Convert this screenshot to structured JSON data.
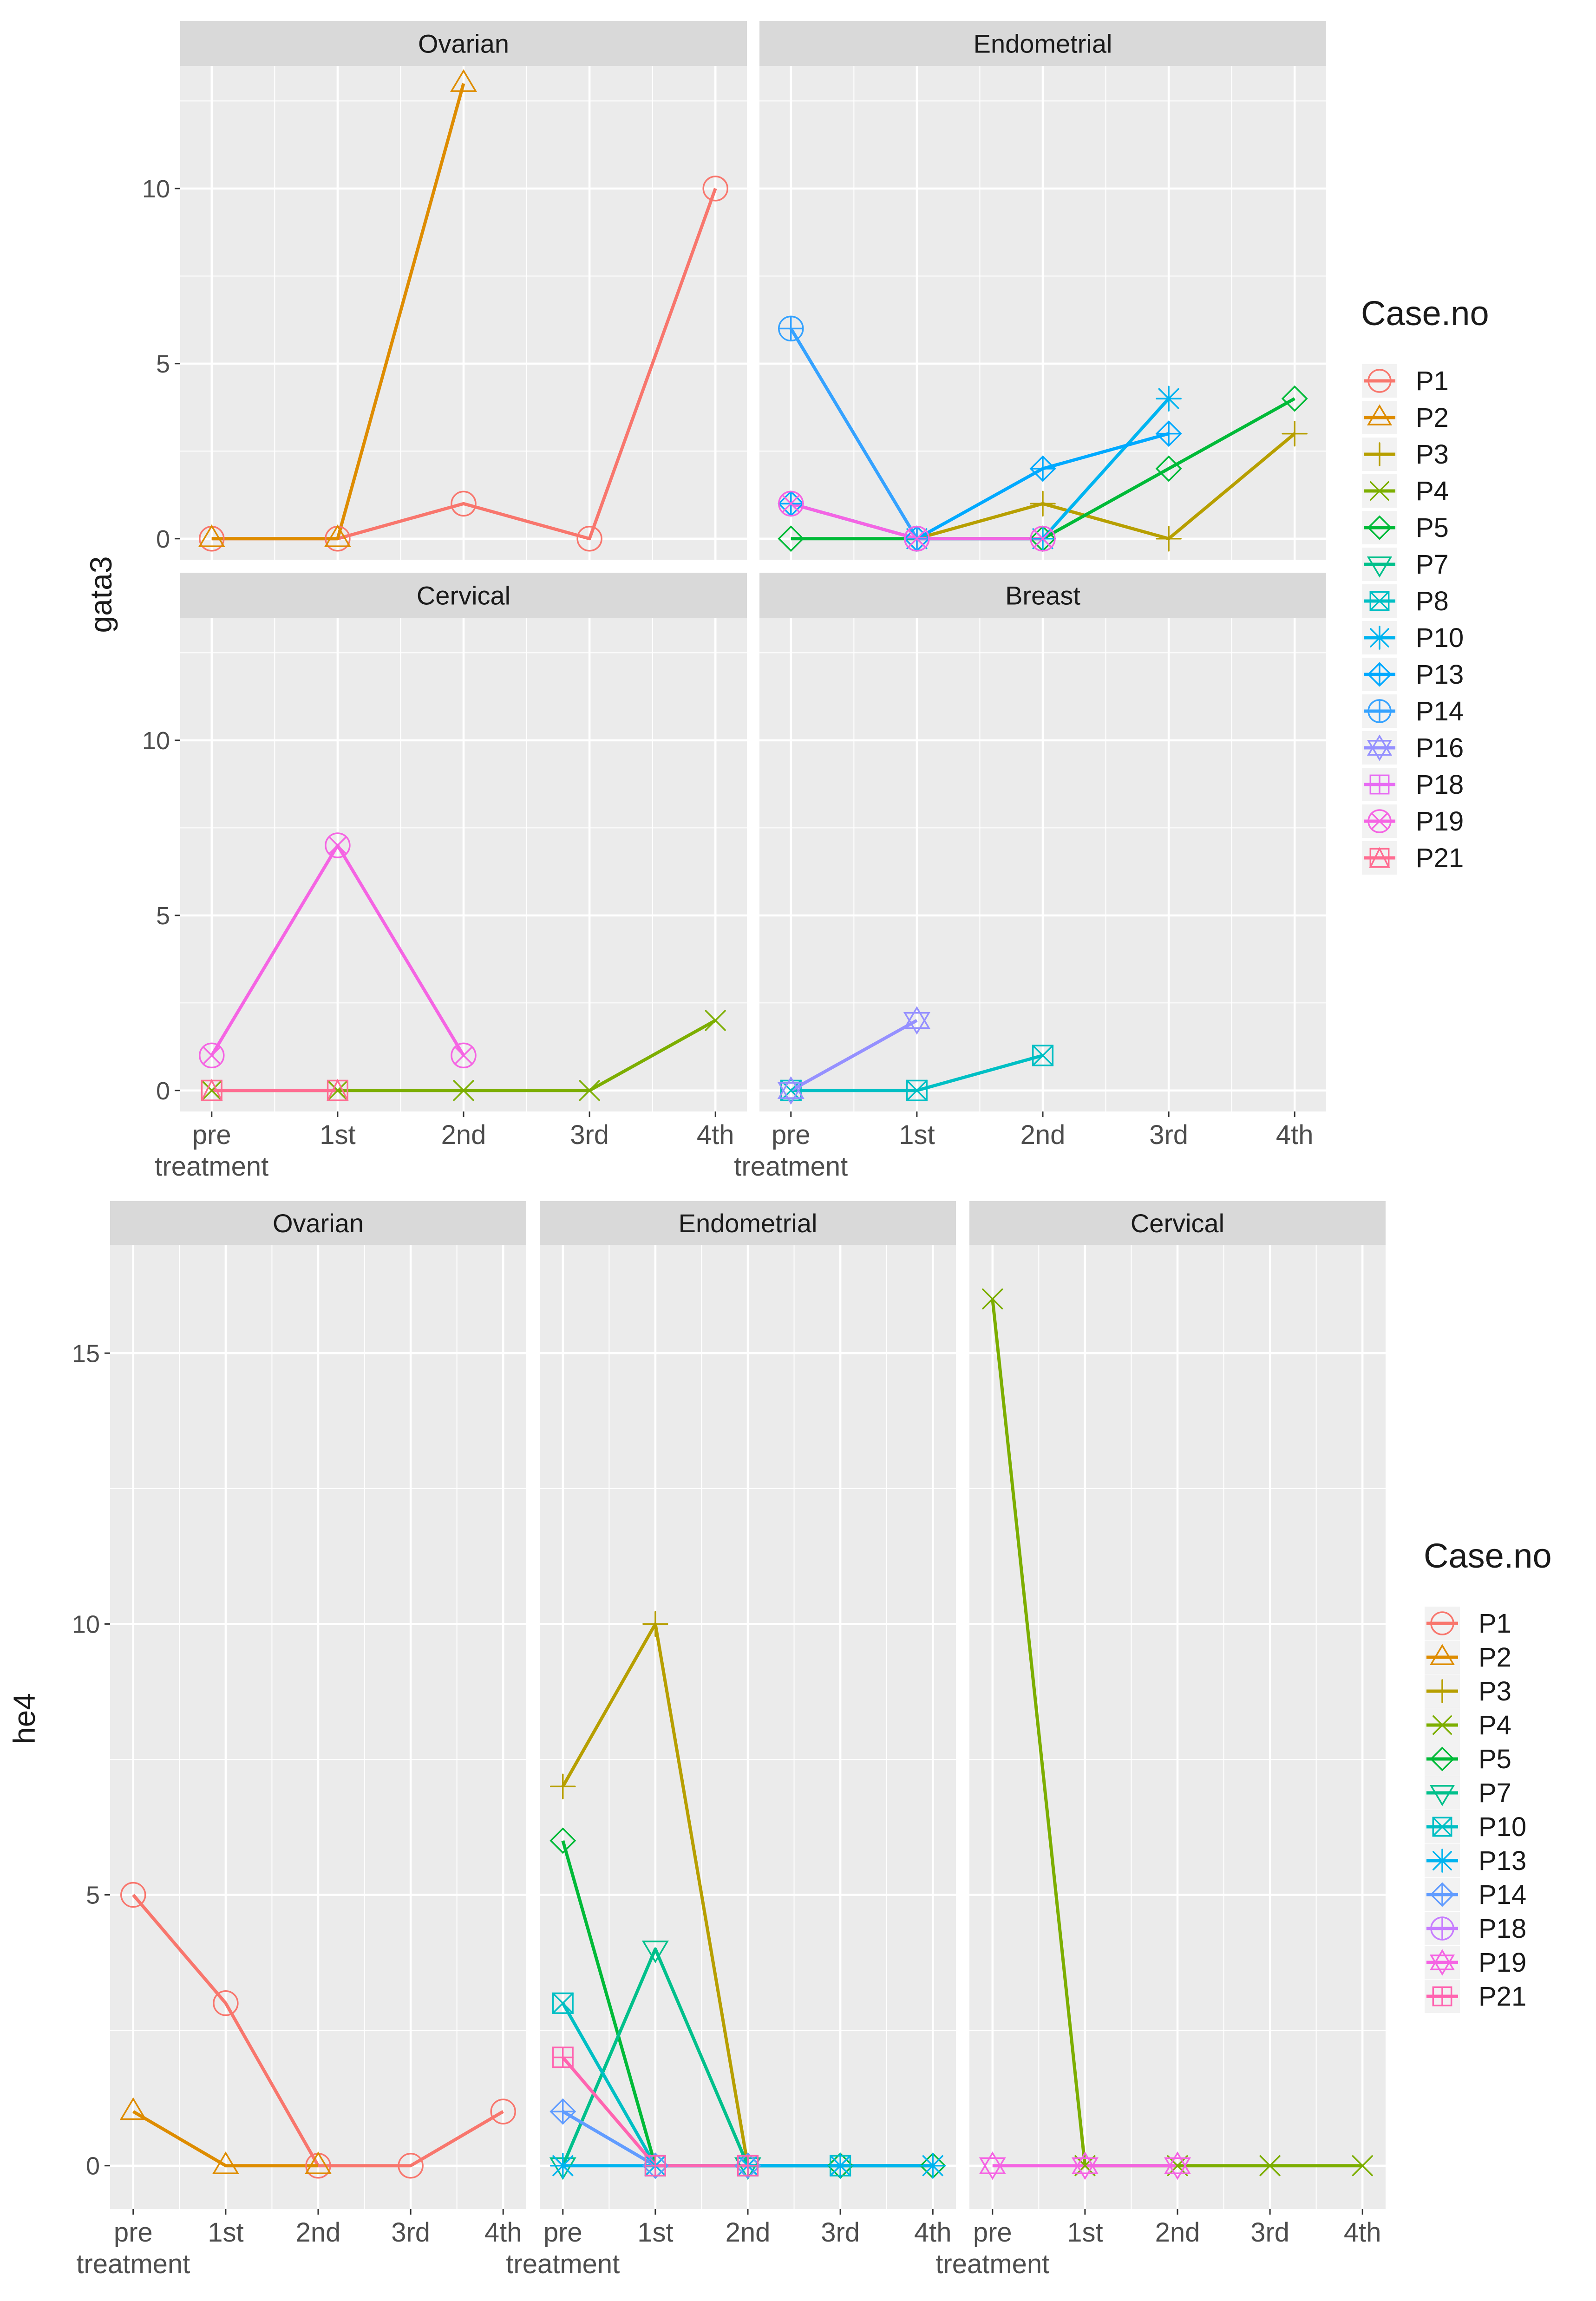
{
  "colors": {
    "P1": "#F8766D",
    "P2": "#DE8C00",
    "P3": "#B79F00",
    "P4": "#7CAE00",
    "P5": "#00BA38",
    "P7": "#00C08B",
    "P8": "#00BFC4",
    "P10": "#00B4F0",
    "P13": "#619CFF",
    "P14": "#C77CFF",
    "P16": "#F564E3",
    "P18": "#FF64B0",
    "P19": "#F564E3",
    "P21": "#FF6C91",
    "panel_bg": "#EBEBEB",
    "strip_bg": "#D9D9D9",
    "grid": "#FFFFFF"
  },
  "chart_data": [
    {
      "type": "line",
      "title": "",
      "ylabel": "gata3",
      "xlabel": "",
      "x_tick_labels": [
        "pre\ntreatment",
        "1st",
        "2nd",
        "3rd",
        "4th"
      ],
      "ylim": [
        -0.6,
        13.5
      ],
      "y_ticks": [
        0,
        5,
        10
      ],
      "layout": "2x2",
      "legend": {
        "title": "Case.no",
        "placement": "right",
        "entries": [
          {
            "name": "P1",
            "color": "#F8766D",
            "shape": "circle"
          },
          {
            "name": "P2",
            "color": "#DE8C00",
            "shape": "triangle"
          },
          {
            "name": "P3",
            "color": "#B79F00",
            "shape": "plus"
          },
          {
            "name": "P4",
            "color": "#7CAE00",
            "shape": "x"
          },
          {
            "name": "P5",
            "color": "#00BA38",
            "shape": "diamond"
          },
          {
            "name": "P7",
            "color": "#00C08B",
            "shape": "triangle-down"
          },
          {
            "name": "P8",
            "color": "#00BFC4",
            "shape": "square-x"
          },
          {
            "name": "P10",
            "color": "#00B4F0",
            "shape": "asterisk"
          },
          {
            "name": "P13",
            "color": "#00A9FF",
            "shape": "diamond-plus"
          },
          {
            "name": "P14",
            "color": "#35A2FF",
            "shape": "circle-plus"
          },
          {
            "name": "P16",
            "color": "#9590FF",
            "shape": "star-of-david"
          },
          {
            "name": "P18",
            "color": "#E76BF3",
            "shape": "square-plus"
          },
          {
            "name": "P19",
            "color": "#F564E3",
            "shape": "circle-x"
          },
          {
            "name": "P21",
            "color": "#FF6C91",
            "shape": "square-triangle"
          }
        ]
      },
      "panels": [
        {
          "title": "Ovarian",
          "series": [
            {
              "name": "P1",
              "color": "#F8766D",
              "shape": "circle",
              "x": [
                0,
                1,
                2,
                3,
                4
              ],
              "values": [
                0,
                0,
                1,
                0,
                10
              ]
            },
            {
              "name": "P2",
              "color": "#DE8C00",
              "shape": "triangle",
              "x": [
                0,
                1,
                2
              ],
              "values": [
                0,
                0,
                13
              ]
            }
          ]
        },
        {
          "title": "Endometrial",
          "series": [
            {
              "name": "P3",
              "color": "#B79F00",
              "shape": "plus",
              "x": [
                1,
                2,
                3,
                4
              ],
              "values": [
                0,
                1,
                0,
                3
              ]
            },
            {
              "name": "P5",
              "color": "#00BA38",
              "shape": "diamond",
              "x": [
                0,
                1,
                2,
                3,
                4
              ],
              "values": [
                0,
                0,
                0,
                2,
                4
              ]
            },
            {
              "name": "P10",
              "color": "#00B4F0",
              "shape": "asterisk",
              "x": [
                1,
                2,
                3
              ],
              "values": [
                0,
                0,
                4
              ]
            },
            {
              "name": "P13",
              "color": "#00A9FF",
              "shape": "diamond-plus",
              "x": [
                0,
                1,
                2,
                3
              ],
              "values": [
                1,
                0,
                2,
                3
              ]
            },
            {
              "name": "P14",
              "color": "#35A2FF",
              "shape": "circle-plus",
              "x": [
                0,
                1
              ],
              "values": [
                6,
                0
              ]
            },
            {
              "name": "P19",
              "color": "#F564E3",
              "shape": "circle-x",
              "x": [
                0,
                1,
                2
              ],
              "values": [
                1,
                0,
                0
              ]
            }
          ]
        },
        {
          "title": "Cervical",
          "series": [
            {
              "name": "P4",
              "color": "#7CAE00",
              "shape": "x",
              "x": [
                0,
                1,
                2,
                3,
                4
              ],
              "values": [
                0,
                0,
                0,
                0,
                2
              ]
            },
            {
              "name": "P19",
              "color": "#F564E3",
              "shape": "circle-x",
              "x": [
                0,
                1,
                2
              ],
              "values": [
                1,
                7,
                1
              ]
            },
            {
              "name": "P21",
              "color": "#FF6C91",
              "shape": "square-triangle",
              "x": [
                0,
                1
              ],
              "values": [
                0,
                0
              ]
            }
          ]
        },
        {
          "title": "Breast",
          "series": [
            {
              "name": "P8",
              "color": "#00BFC4",
              "shape": "square-x",
              "x": [
                0,
                1,
                2
              ],
              "values": [
                0,
                0,
                1
              ]
            },
            {
              "name": "P16",
              "color": "#9590FF",
              "shape": "star-of-david",
              "x": [
                0,
                1
              ],
              "values": [
                0,
                2
              ]
            }
          ]
        }
      ]
    },
    {
      "type": "line",
      "title": "",
      "ylabel": "he4",
      "xlabel": "",
      "x_tick_labels": [
        "pre\ntreatment",
        "1st",
        "2nd",
        "3rd",
        "4th"
      ],
      "ylim": [
        -0.8,
        17.0
      ],
      "y_ticks": [
        0,
        5,
        10,
        15
      ],
      "layout": "1x3",
      "legend": {
        "title": "Case.no",
        "placement": "right",
        "entries": [
          {
            "name": "P1",
            "color": "#F8766D",
            "shape": "circle"
          },
          {
            "name": "P2",
            "color": "#DE8C00",
            "shape": "triangle"
          },
          {
            "name": "P3",
            "color": "#B79F00",
            "shape": "plus"
          },
          {
            "name": "P4",
            "color": "#7CAE00",
            "shape": "x"
          },
          {
            "name": "P5",
            "color": "#00BA38",
            "shape": "diamond"
          },
          {
            "name": "P7",
            "color": "#00C08B",
            "shape": "triangle-down"
          },
          {
            "name": "P10",
            "color": "#00BFC4",
            "shape": "square-x"
          },
          {
            "name": "P13",
            "color": "#00B4F0",
            "shape": "asterisk"
          },
          {
            "name": "P14",
            "color": "#619CFF",
            "shape": "diamond-plus"
          },
          {
            "name": "P18",
            "color": "#C77CFF",
            "shape": "circle-plus"
          },
          {
            "name": "P19",
            "color": "#F564E3",
            "shape": "star-of-david"
          },
          {
            "name": "P21",
            "color": "#FF64B0",
            "shape": "square-plus"
          }
        ]
      },
      "panels": [
        {
          "title": "Ovarian",
          "series": [
            {
              "name": "P1",
              "color": "#F8766D",
              "shape": "circle",
              "x": [
                0,
                1,
                2,
                3,
                4
              ],
              "values": [
                5,
                3,
                0,
                0,
                1
              ]
            },
            {
              "name": "P2",
              "color": "#DE8C00",
              "shape": "triangle",
              "x": [
                0,
                1,
                2
              ],
              "values": [
                1,
                0,
                0
              ]
            }
          ]
        },
        {
          "title": "Endometrial",
          "series": [
            {
              "name": "P3",
              "color": "#B79F00",
              "shape": "plus",
              "x": [
                0,
                1,
                2
              ],
              "values": [
                7,
                10,
                0
              ]
            },
            {
              "name": "P5",
              "color": "#00BA38",
              "shape": "diamond",
              "x": [
                0,
                1,
                2,
                3,
                4
              ],
              "values": [
                6,
                0,
                0,
                0,
                0
              ]
            },
            {
              "name": "P7",
              "color": "#00C08B",
              "shape": "triangle-down",
              "x": [
                0,
                1,
                2
              ],
              "values": [
                0,
                4,
                0
              ]
            },
            {
              "name": "P10",
              "color": "#00BFC4",
              "shape": "square-x",
              "x": [
                0,
                1,
                2,
                3
              ],
              "values": [
                3,
                0,
                0,
                0
              ]
            },
            {
              "name": "P13",
              "color": "#00B4F0",
              "shape": "asterisk",
              "x": [
                0,
                1,
                2,
                3,
                4
              ],
              "values": [
                0,
                0,
                0,
                0,
                0
              ]
            },
            {
              "name": "P14",
              "color": "#619CFF",
              "shape": "diamond-plus",
              "x": [
                0,
                1,
                2
              ],
              "values": [
                1,
                0,
                0
              ]
            },
            {
              "name": "P21",
              "color": "#FF64B0",
              "shape": "square-plus",
              "x": [
                0,
                1,
                2
              ],
              "values": [
                2,
                0,
                0
              ]
            }
          ]
        },
        {
          "title": "Cervical",
          "series": [
            {
              "name": "P4",
              "color": "#7CAE00",
              "shape": "x",
              "x": [
                0,
                1,
                2,
                3,
                4
              ],
              "values": [
                16,
                0,
                0,
                0,
                0
              ]
            },
            {
              "name": "P19",
              "color": "#F564E3",
              "shape": "star-of-david",
              "x": [
                0,
                1,
                2
              ],
              "values": [
                0,
                0,
                0
              ]
            }
          ]
        }
      ]
    }
  ]
}
